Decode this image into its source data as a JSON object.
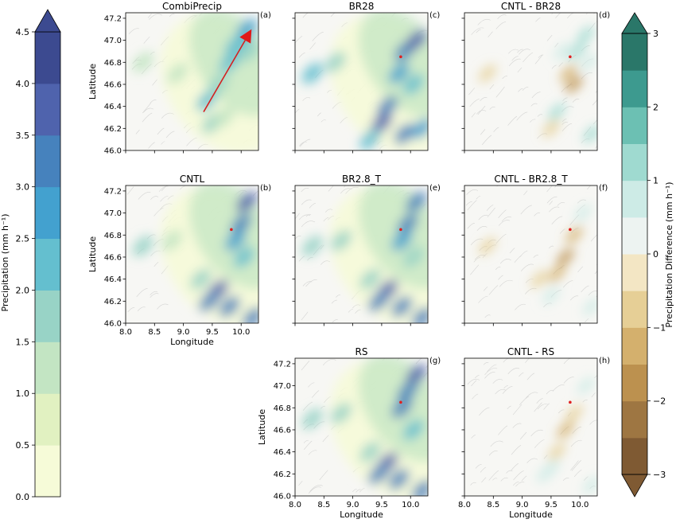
{
  "left_colorbar": {
    "label": "Precipitation (mm h⁻¹)",
    "ticks": [
      "0.0",
      "0.5",
      "1.0",
      "1.5",
      "2.0",
      "2.5",
      "3.0",
      "3.5",
      "4.0",
      "4.5"
    ],
    "tick_values": [
      0,
      0.5,
      1,
      1.5,
      2,
      2.5,
      3,
      3.5,
      4,
      4.5
    ],
    "levels": [
      0,
      0.5,
      1,
      1.5,
      2,
      2.5,
      3,
      3.5,
      4,
      4.5
    ],
    "colors": [
      "#f6fbd8",
      "#e1f1c1",
      "#c3e5c3",
      "#98d3c6",
      "#64bfcf",
      "#43a1cf",
      "#4682bd",
      "#4f63ad",
      "#3c4a90"
    ],
    "extend": "max"
  },
  "right_colorbar": {
    "label": "Precipitation Difference (mm h⁻¹)",
    "ticks": [
      "−3",
      "−2",
      "−1",
      "0",
      "1",
      "2",
      "3"
    ],
    "tick_values": [
      -3,
      -2,
      -1,
      0,
      1,
      2,
      3
    ],
    "levels": [
      -3,
      -2.5,
      -2,
      -1.5,
      -1,
      -0.5,
      0,
      0.5,
      1,
      1.5,
      2,
      2.5,
      3
    ],
    "colors": [
      "#7f5a33",
      "#9e7642",
      "#bc914f",
      "#d4b06d",
      "#e6cf96",
      "#f3e6c4",
      "#edf3f1",
      "#cdebe6",
      "#9fdad0",
      "#6cc0b3",
      "#3d9a8f",
      "#2a7769"
    ],
    "extend": "both"
  },
  "panels": [
    {
      "id": "a",
      "title": "CombiPrecip",
      "tag": "(a)",
      "type": "precip",
      "xlabel": "",
      "ylabel": "Latitude",
      "show_xticks": false,
      "show_yticks": true,
      "arrow": true,
      "marker": false
    },
    {
      "id": "c",
      "title": "BR28",
      "tag": "(c)",
      "type": "precip",
      "xlabel": "",
      "ylabel": "",
      "show_xticks": false,
      "show_yticks": false,
      "arrow": false,
      "marker": true
    },
    {
      "id": "d",
      "title": "CNTL - BR28",
      "tag": "(d)",
      "type": "diff",
      "xlabel": "",
      "ylabel": "",
      "show_xticks": false,
      "show_yticks": false,
      "arrow": false,
      "marker": true
    },
    {
      "id": "b",
      "title": "CNTL",
      "tag": "(b)",
      "type": "precip",
      "xlabel": "Longitude",
      "ylabel": "Latitude",
      "show_xticks": true,
      "show_yticks": true,
      "arrow": false,
      "marker": true
    },
    {
      "id": "e",
      "title": "BR2.8_T",
      "tag": "(e)",
      "type": "precip",
      "xlabel": "",
      "ylabel": "",
      "show_xticks": false,
      "show_yticks": false,
      "arrow": false,
      "marker": true
    },
    {
      "id": "f",
      "title": "CNTL - BR2.8_T",
      "tag": "(f)",
      "type": "diff",
      "xlabel": "",
      "ylabel": "",
      "show_xticks": false,
      "show_yticks": false,
      "arrow": false,
      "marker": true
    },
    {
      "id": "g",
      "title": "RS",
      "tag": "(g)",
      "type": "precip",
      "xlabel": "Longitude",
      "ylabel": "Latitude",
      "show_xticks": true,
      "show_yticks": true,
      "arrow": false,
      "marker": true
    },
    {
      "id": "h",
      "title": "CNTL - RS",
      "tag": "(h)",
      "type": "diff",
      "xlabel": "Longitude",
      "ylabel": "",
      "show_xticks": true,
      "show_yticks": false,
      "arrow": false,
      "marker": true
    }
  ],
  "chart_data": {
    "type": "heatmap",
    "x_range": [
      8.0,
      10.3
    ],
    "y_range": [
      46.0,
      47.25
    ],
    "x_ticks": [
      8.0,
      8.5,
      9.0,
      9.5,
      10.0
    ],
    "x_tick_labels": [
      "8.0",
      "8.5",
      "9.0",
      "9.5",
      "10.0"
    ],
    "y_ticks": [
      46.0,
      46.2,
      46.4,
      46.6,
      46.8,
      47.0,
      47.2
    ],
    "y_tick_labels": [
      "46.0",
      "46.2",
      "46.4",
      "46.6",
      "46.8",
      "47.0",
      "47.2"
    ],
    "marker_point": {
      "lon": 9.83,
      "lat": 46.85
    },
    "arrow": {
      "from": {
        "lon": 9.35,
        "lat": 46.35
      },
      "to": {
        "lon": 10.18,
        "lat": 47.1
      }
    },
    "precip_cells": {
      "a": [
        [
          9.6,
          46.6,
          1.5
        ],
        [
          9.8,
          46.8,
          2.0
        ],
        [
          10.0,
          47.0,
          2.4
        ],
        [
          10.1,
          47.1,
          2.6
        ],
        [
          9.4,
          46.45,
          2.2
        ],
        [
          9.5,
          46.25,
          1.6
        ],
        [
          9.9,
          46.95,
          2.2
        ],
        [
          8.3,
          46.8,
          1.0
        ],
        [
          8.9,
          46.7,
          1.0
        ],
        [
          9.7,
          46.3,
          1.4
        ],
        [
          10.15,
          46.9,
          1.5
        ]
      ],
      "c": [
        [
          9.9,
          46.9,
          3.0
        ],
        [
          10.1,
          47.0,
          3.5
        ],
        [
          9.8,
          46.7,
          2.5
        ],
        [
          9.6,
          46.4,
          3.2
        ],
        [
          9.5,
          46.25,
          3.5
        ],
        [
          10.05,
          46.6,
          2.2
        ],
        [
          9.9,
          46.15,
          3.4
        ],
        [
          10.2,
          46.2,
          2.6
        ],
        [
          8.3,
          46.7,
          2.0
        ],
        [
          8.7,
          46.8,
          1.8
        ],
        [
          9.3,
          46.1,
          2.4
        ]
      ],
      "b": [
        [
          10.1,
          47.1,
          3.6
        ],
        [
          10.0,
          46.9,
          3.2
        ],
        [
          9.9,
          46.75,
          2.8
        ],
        [
          9.6,
          46.3,
          3.8
        ],
        [
          9.45,
          46.2,
          3.4
        ],
        [
          9.8,
          46.15,
          3.0
        ],
        [
          10.2,
          46.05,
          3.2
        ],
        [
          10.05,
          46.6,
          2.0
        ],
        [
          8.3,
          46.7,
          1.8
        ],
        [
          8.8,
          46.75,
          1.4
        ],
        [
          9.3,
          46.4,
          1.6
        ]
      ],
      "e": [
        [
          10.1,
          47.1,
          3.4
        ],
        [
          9.95,
          46.9,
          3.1
        ],
        [
          9.85,
          46.75,
          2.7
        ],
        [
          9.6,
          46.3,
          3.6
        ],
        [
          9.45,
          46.2,
          3.3
        ],
        [
          9.85,
          46.15,
          3.0
        ],
        [
          10.2,
          46.05,
          3.0
        ],
        [
          10.05,
          46.6,
          1.9
        ],
        [
          8.3,
          46.7,
          1.9
        ],
        [
          8.8,
          46.75,
          1.5
        ],
        [
          9.3,
          46.4,
          1.7
        ]
      ],
      "g": [
        [
          10.1,
          47.1,
          3.5
        ],
        [
          9.95,
          46.95,
          3.3
        ],
        [
          9.85,
          46.8,
          3.0
        ],
        [
          9.6,
          46.3,
          3.7
        ],
        [
          9.45,
          46.2,
          3.4
        ],
        [
          9.8,
          46.15,
          3.1
        ],
        [
          10.2,
          46.05,
          3.1
        ],
        [
          10.05,
          46.6,
          2.1
        ],
        [
          8.3,
          46.7,
          1.9
        ],
        [
          8.8,
          46.75,
          1.5
        ],
        [
          9.3,
          46.4,
          1.7
        ]
      ]
    },
    "diff_cells": {
      "d": [
        [
          9.95,
          46.9,
          1.4
        ],
        [
          10.1,
          47.05,
          1.2
        ],
        [
          9.8,
          46.7,
          -1.2
        ],
        [
          9.9,
          46.6,
          -1.6
        ],
        [
          9.6,
          46.35,
          1.0
        ],
        [
          9.5,
          46.2,
          -1.0
        ],
        [
          10.2,
          46.15,
          1.2
        ],
        [
          8.4,
          46.7,
          -0.8
        ],
        [
          9.7,
          46.9,
          0.8
        ],
        [
          10.15,
          46.8,
          0.9
        ]
      ],
      "f": [
        [
          9.9,
          46.8,
          -1.4
        ],
        [
          9.75,
          46.6,
          -1.8
        ],
        [
          9.6,
          46.45,
          -1.2
        ],
        [
          10.05,
          47.0,
          0.7
        ],
        [
          9.5,
          46.25,
          0.6
        ],
        [
          10.2,
          46.15,
          0.8
        ],
        [
          8.4,
          46.7,
          -0.6
        ],
        [
          9.3,
          46.4,
          -0.6
        ]
      ],
      "h": [
        [
          9.9,
          46.75,
          -1.0
        ],
        [
          9.75,
          46.6,
          -1.2
        ],
        [
          9.6,
          46.4,
          -0.8
        ],
        [
          10.1,
          47.0,
          0.6
        ],
        [
          9.5,
          46.25,
          0.5
        ],
        [
          10.2,
          46.1,
          0.7
        ],
        [
          9.4,
          46.2,
          0.6
        ]
      ]
    }
  }
}
